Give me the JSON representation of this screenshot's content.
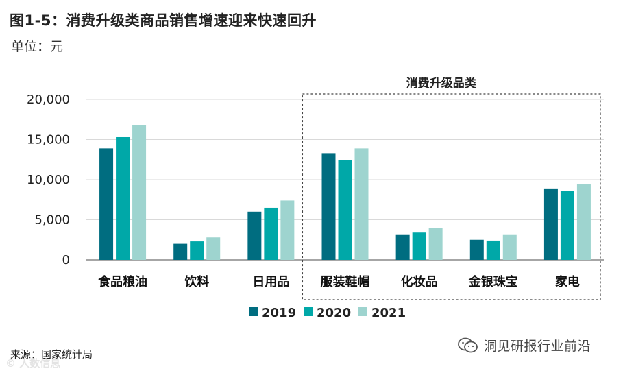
{
  "header": {
    "title": "图1-5：消费升级类商品销售增速迎来快速回升",
    "unit": "单位：元"
  },
  "footer": {
    "source": "来源：国家统计局",
    "watermark_left": "© 人数信息",
    "watermark_right": "洞见研报行业前沿"
  },
  "chart_data": {
    "type": "bar",
    "categories": [
      "食品粮油",
      "饮料",
      "日用品",
      "服装鞋帽",
      "化妆品",
      "金银珠宝",
      "家电"
    ],
    "series": [
      {
        "name": "2019",
        "values": [
          13900,
          2000,
          6000,
          13300,
          3100,
          2500,
          8900
        ]
      },
      {
        "name": "2020",
        "values": [
          15300,
          2300,
          6500,
          12400,
          3400,
          2400,
          8600
        ]
      },
      {
        "name": "2021",
        "values": [
          16800,
          2800,
          7400,
          13900,
          4000,
          3100,
          9400
        ]
      }
    ],
    "ylim": [
      0,
      20000
    ],
    "yticks": [
      "0",
      "5,000",
      "10,000",
      "15,000",
      "20,000"
    ],
    "ytick_values": [
      0,
      5000,
      10000,
      15000,
      20000
    ],
    "grid": true,
    "legend_position": "bottom-center",
    "highlight_group": {
      "label": "消费升级品类",
      "categories": [
        "服装鞋帽",
        "化妆品",
        "金银珠宝",
        "家电"
      ]
    },
    "colors": [
      "#006d80",
      "#00a8a8",
      "#9ed4cf"
    ]
  }
}
